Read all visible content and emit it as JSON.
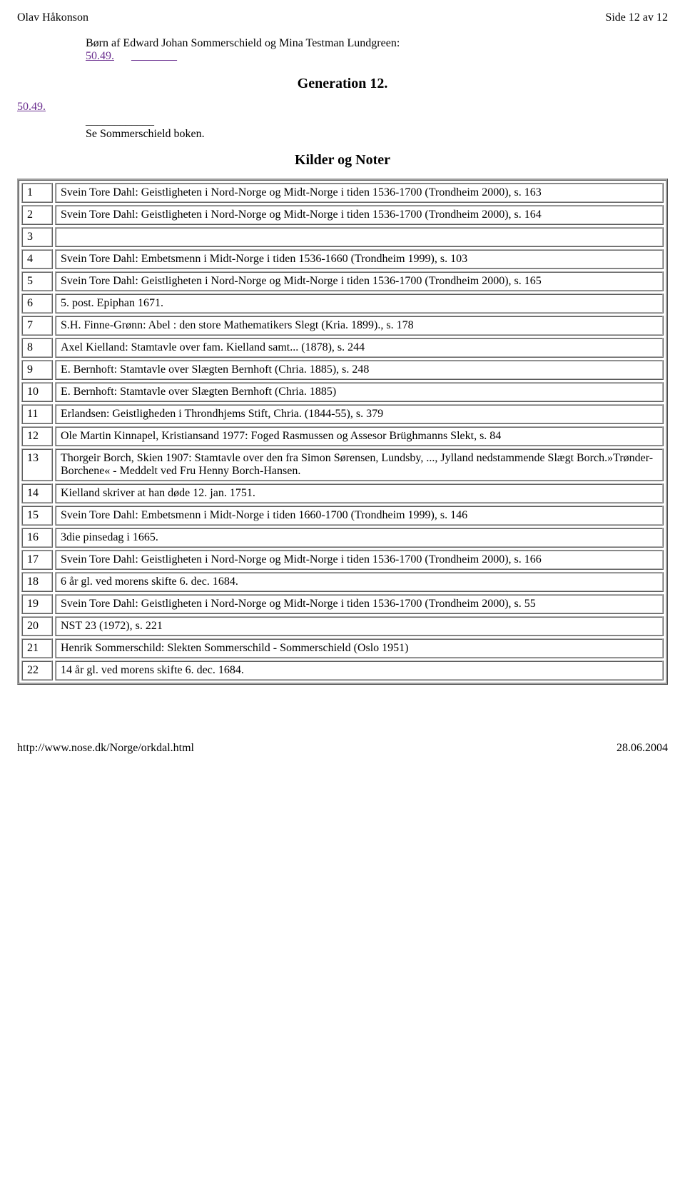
{
  "header": {
    "left": "Olav Håkonson",
    "right": "Side 12 av 12"
  },
  "intro": {
    "born_line": "Børn af Edward Johan Sommerschield og Mina Testman Lundgreen:",
    "link_label": "50.49.",
    "blank_link_text": "________"
  },
  "generation_heading": "Generation 12.",
  "entry": {
    "number_link": "50.49.",
    "line2": "____________",
    "line3": "Se Sommerschield boken."
  },
  "kilder_heading": "Kilder og Noter",
  "notes": [
    {
      "n": "1",
      "t": "Svein Tore Dahl: Geistligheten i Nord-Norge og Midt-Norge i tiden 1536-1700 (Trondheim 2000), s. 163"
    },
    {
      "n": "2",
      "t": "Svein Tore Dahl: Geistligheten i Nord-Norge og Midt-Norge i tiden 1536-1700 (Trondheim 2000), s. 164"
    },
    {
      "n": "3",
      "t": ""
    },
    {
      "n": "4",
      "t": "Svein Tore Dahl: Embetsmenn i Midt-Norge i tiden 1536-1660 (Trondheim 1999), s. 103"
    },
    {
      "n": "5",
      "t": "Svein Tore Dahl: Geistligheten i Nord-Norge og Midt-Norge i tiden 1536-1700 (Trondheim 2000), s. 165"
    },
    {
      "n": "6",
      "t": "5. post. Epiphan 1671."
    },
    {
      "n": "7",
      "t": "S.H. Finne-Grønn: Abel : den store Mathematikers Slegt (Kria. 1899)., s. 178"
    },
    {
      "n": "8",
      "t": "Axel Kielland: Stamtavle over fam. Kielland samt... (1878), s. 244"
    },
    {
      "n": "9",
      "t": "E. Bernhoft: Stamtavle over Slægten Bernhoft (Chria. 1885), s. 248"
    },
    {
      "n": "10",
      "t": "E. Bernhoft: Stamtavle over Slægten Bernhoft (Chria. 1885)"
    },
    {
      "n": "11",
      "t": "Erlandsen: Geistligheden i Throndhjems Stift, Chria. (1844-55), s. 379"
    },
    {
      "n": "12",
      "t": "Ole Martin Kinnapel, Kristiansand 1977: Foged Rasmussen og Assesor Brüghmanns Slekt, s. 84"
    },
    {
      "n": "13",
      "t": "Thorgeir Borch, Skien 1907: Stamtavle over den fra Simon Sørensen, Lundsby, ..., Jylland nedstammende Slægt Borch.»Trønder-Borchene« - Meddelt ved Fru Henny Borch-Hansen."
    },
    {
      "n": "14",
      "t": "Kielland skriver at han døde 12. jan. 1751."
    },
    {
      "n": "15",
      "t": "Svein Tore Dahl: Embetsmenn i Midt-Norge i tiden 1660-1700 (Trondheim 1999), s. 146"
    },
    {
      "n": "16",
      "t": "3die pinsedag i 1665."
    },
    {
      "n": "17",
      "t": "Svein Tore Dahl: Geistligheten i Nord-Norge og Midt-Norge i tiden 1536-1700 (Trondheim 2000), s. 166"
    },
    {
      "n": "18",
      "t": "6 år gl. ved morens skifte 6. dec. 1684."
    },
    {
      "n": "19",
      "t": "Svein Tore Dahl: Geistligheten i Nord-Norge og Midt-Norge i tiden 1536-1700 (Trondheim 2000), s. 55"
    },
    {
      "n": "20",
      "t": "NST 23 (1972), s. 221"
    },
    {
      "n": "21",
      "t": "Henrik Sommerschild: Slekten Sommerschild - Sommerschield (Oslo 1951)"
    },
    {
      "n": "22",
      "t": "14 år gl. ved morens skifte 6. dec. 1684."
    }
  ],
  "footer": {
    "url": "http://www.nose.dk/Norge/orkdal.html",
    "date": "28.06.2004"
  }
}
